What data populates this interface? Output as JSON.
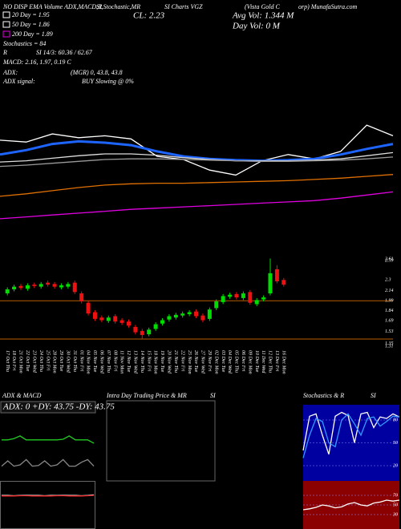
{
  "header": {
    "items": [
      "NO DISP EMA Volume ADX,MACD,R",
      "SI,Stochastic,MR",
      "SI Charts VGZ",
      "(Vista Gold C",
      "orp) MunafaSutra.com",
      "CL: 2.23",
      "Avg Vol: 1.344  M",
      "Day Vol: 0  M",
      "20  Day = 1.95",
      "50  Day = 1.86",
      "200  Day = 1.89",
      "Stochastics = 84",
      "R",
      "SI 14/3: 60.36 / 62.67",
      "MACD: 2.16, 1.97, 0.19 C",
      "ADX:",
      "(MGR) 0, 43.8, 43.8",
      "ADX  signal:",
      "BUY Slowing @ 0%"
    ]
  },
  "chart_data": [
    {
      "type": "candlestick",
      "x": [
        "17 Oct Thu",
        "18 Oct Fri",
        "21 Oct Mon",
        "22 Oct Tue",
        "23 Oct Wed",
        "24 Oct Thu",
        "25 Oct Fri",
        "28 Oct Mon",
        "29 Oct Tue",
        "30 Oct Wed",
        "31 Oct Thu",
        "01 Nov Fri",
        "04 Nov Mon",
        "05 Nov Tue",
        "06 Nov Wed",
        "07 Nov Thu",
        "08 Nov Fri",
        "11 Nov Mon",
        "12 Nov Tue",
        "13 Nov Wed",
        "14 Nov Thu",
        "15 Nov Fri",
        "18 Nov Mon",
        "19 Nov Tue",
        "20 Nov Wed",
        "21 Nov Thu",
        "22 Nov Fri",
        "25 Nov Mon",
        "26 Nov Tue",
        "27 Nov Wed",
        "29 Nov Fri",
        "02 Dec Mon",
        "03 Dec Tue",
        "04 Dec Wed",
        "05 Dec Thu",
        "06 Dec Fri",
        "09 Dec Mon",
        "10 Dec Tue",
        "11 Dec Wed",
        "12 Dec Thu",
        "13 Dec Fri",
        "16 Dec Mon"
      ],
      "open": [
        2.1,
        2.16,
        2.21,
        2.17,
        2.23,
        2.2,
        2.26,
        2.24,
        2.19,
        2.2,
        2.26,
        2.1,
        1.96,
        1.82,
        1.74,
        1.69,
        1.76,
        1.7,
        1.68,
        1.6,
        1.54,
        1.49,
        1.57,
        1.65,
        1.71,
        1.74,
        1.77,
        1.79,
        1.83,
        1.77,
        1.72,
        1.88,
        1.97,
        2.05,
        2.09,
        2.03,
        2.12,
        1.94,
        2.01,
        2.1,
        2.46,
        2.3
      ],
      "high": [
        2.19,
        2.23,
        2.24,
        2.25,
        2.26,
        2.27,
        2.29,
        2.27,
        2.25,
        2.27,
        2.29,
        2.13,
        1.99,
        1.85,
        1.77,
        1.77,
        1.79,
        1.73,
        1.71,
        1.63,
        1.57,
        1.59,
        1.67,
        1.73,
        1.79,
        1.81,
        1.83,
        1.85,
        1.86,
        1.8,
        1.89,
        2.01,
        2.09,
        2.11,
        2.12,
        2.13,
        2.15,
        2.03,
        2.07,
        2.62,
        2.52,
        2.33
      ],
      "low": [
        2.07,
        2.13,
        2.15,
        2.14,
        2.18,
        2.17,
        2.2,
        2.17,
        2.16,
        2.17,
        2.09,
        1.95,
        1.77,
        1.69,
        1.67,
        1.66,
        1.65,
        1.63,
        1.59,
        1.49,
        1.42,
        1.46,
        1.54,
        1.62,
        1.68,
        1.71,
        1.74,
        1.76,
        1.73,
        1.67,
        1.69,
        1.85,
        1.94,
        2.02,
        2.01,
        2.0,
        1.93,
        1.91,
        1.98,
        2.07,
        2.25,
        2.2
      ],
      "close": [
        2.16,
        2.2,
        2.18,
        2.22,
        2.21,
        2.24,
        2.23,
        2.2,
        2.22,
        2.24,
        2.12,
        1.98,
        1.8,
        1.72,
        1.7,
        1.74,
        1.68,
        1.66,
        1.62,
        1.52,
        1.48,
        1.56,
        1.64,
        1.7,
        1.76,
        1.78,
        1.8,
        1.82,
        1.76,
        1.7,
        1.86,
        1.98,
        2.06,
        2.08,
        2.04,
        2.1,
        1.96,
        2.0,
        2.04,
        2.4,
        2.28,
        2.23
      ],
      "up_color": "#00dd00",
      "down_color": "#ee1111",
      "ylim": [
        1.3,
        2.65
      ],
      "yticks": [
        2.61,
        2.59,
        2.3,
        2.14,
        1.99,
        1.84,
        1.69,
        1.53,
        1.35,
        1.31
      ],
      "levels": [
        1.99,
        1.42
      ],
      "level_color": "#b85c00"
    },
    {
      "type": "line",
      "ylim": [
        0.8,
        2.6
      ],
      "series": [
        {
          "color": "#ffffff",
          "values": [
            2.28,
            2.25,
            2.38,
            2.32,
            2.35,
            2.3,
            2.02,
            1.97,
            1.8,
            1.72,
            1.95,
            2.05,
            1.98,
            2.1,
            2.52,
            2.35
          ]
        },
        {
          "color": "#1e64ff",
          "values": [
            2.05,
            2.12,
            2.22,
            2.26,
            2.24,
            2.2,
            2.1,
            2.02,
            1.98,
            1.96,
            1.95,
            1.96,
            1.98,
            2.05,
            2.14,
            2.22
          ]
        },
        {
          "color": "#dddddd",
          "values": [
            1.93,
            1.95,
            1.99,
            2.03,
            2.06,
            2.06,
            2.04,
            2.0,
            1.97,
            1.95,
            1.95,
            1.95,
            1.96,
            1.98,
            2.03,
            2.08
          ]
        },
        {
          "color": "#999999",
          "values": [
            1.86,
            1.88,
            1.91,
            1.94,
            1.97,
            1.98,
            1.98,
            1.97,
            1.96,
            1.95,
            1.94,
            1.94,
            1.95,
            1.96,
            1.98,
            2.01
          ]
        },
        {
          "color": "#e07000",
          "values": [
            1.38,
            1.42,
            1.47,
            1.52,
            1.56,
            1.58,
            1.59,
            1.59,
            1.6,
            1.61,
            1.62,
            1.63,
            1.65,
            1.67,
            1.7,
            1.73
          ]
        },
        {
          "color": "#e000e0",
          "values": [
            1.02,
            1.05,
            1.08,
            1.11,
            1.14,
            1.17,
            1.19,
            1.21,
            1.23,
            1.25,
            1.27,
            1.29,
            1.31,
            1.35,
            1.4,
            1.45
          ]
        }
      ]
    },
    {
      "type": "line",
      "title": [
        "ADX  & MACD"
      ],
      "label": "ADX: 0  +DY: 43.75  -DY: 43.75",
      "ylim": [
        0,
        100
      ],
      "series": [
        {
          "color": "#22cc22",
          "values": [
            60,
            60,
            62,
            66,
            60,
            60,
            60,
            60,
            60,
            60,
            61,
            66,
            60,
            60,
            60,
            55
          ]
        },
        {
          "color": "#888888",
          "values": [
            20,
            28,
            20,
            22,
            30,
            20,
            21,
            28,
            20,
            22,
            30,
            20,
            20,
            26,
            30,
            20
          ]
        }
      ]
    },
    {
      "type": "line",
      "ylim": [
        -1,
        1
      ],
      "series": [
        {
          "color": "#ffffff",
          "values": [
            0.42,
            0.42,
            0.41,
            0.42,
            0.43,
            0.42,
            0.42,
            0.41,
            0.42,
            0.42,
            0.43,
            0.42,
            0.42,
            0.41,
            0.42,
            0.45
          ]
        },
        {
          "color": "#ee2222",
          "values": [
            0.4,
            0.4,
            0.4,
            0.41,
            0.41,
            0.4,
            0.4,
            0.4,
            0.4,
            0.41,
            0.41,
            0.4,
            0.4,
            0.4,
            0.41,
            0.43
          ]
        }
      ]
    },
    {
      "type": "frame",
      "title": [
        "Intra  Day Trading Price  & MR",
        "SI"
      ]
    },
    {
      "type": "line",
      "title": [
        "Stochastics & R",
        "SI"
      ],
      "background": "#0000a0",
      "ylim": [
        0,
        100
      ],
      "yticks": [
        80,
        50,
        20
      ],
      "series": [
        {
          "color": "#ffffff",
          "values": [
            40,
            85,
            88,
            60,
            35,
            85,
            90,
            86,
            50,
            88,
            90,
            70,
            84,
            82,
            88,
            84
          ]
        },
        {
          "color": "#3399ff",
          "values": [
            30,
            60,
            82,
            78,
            50,
            45,
            80,
            88,
            75,
            60,
            82,
            84,
            72,
            78,
            85,
            84
          ]
        }
      ]
    },
    {
      "type": "line",
      "background": "#8b0000",
      "ylim": [
        0,
        100
      ],
      "yticks": [
        70,
        50,
        30
      ],
      "series": [
        {
          "color": "#ffffff",
          "values": [
            40,
            42,
            45,
            50,
            48,
            44,
            46,
            52,
            55,
            50,
            48,
            54,
            56,
            60,
            58,
            60
          ]
        }
      ]
    }
  ]
}
